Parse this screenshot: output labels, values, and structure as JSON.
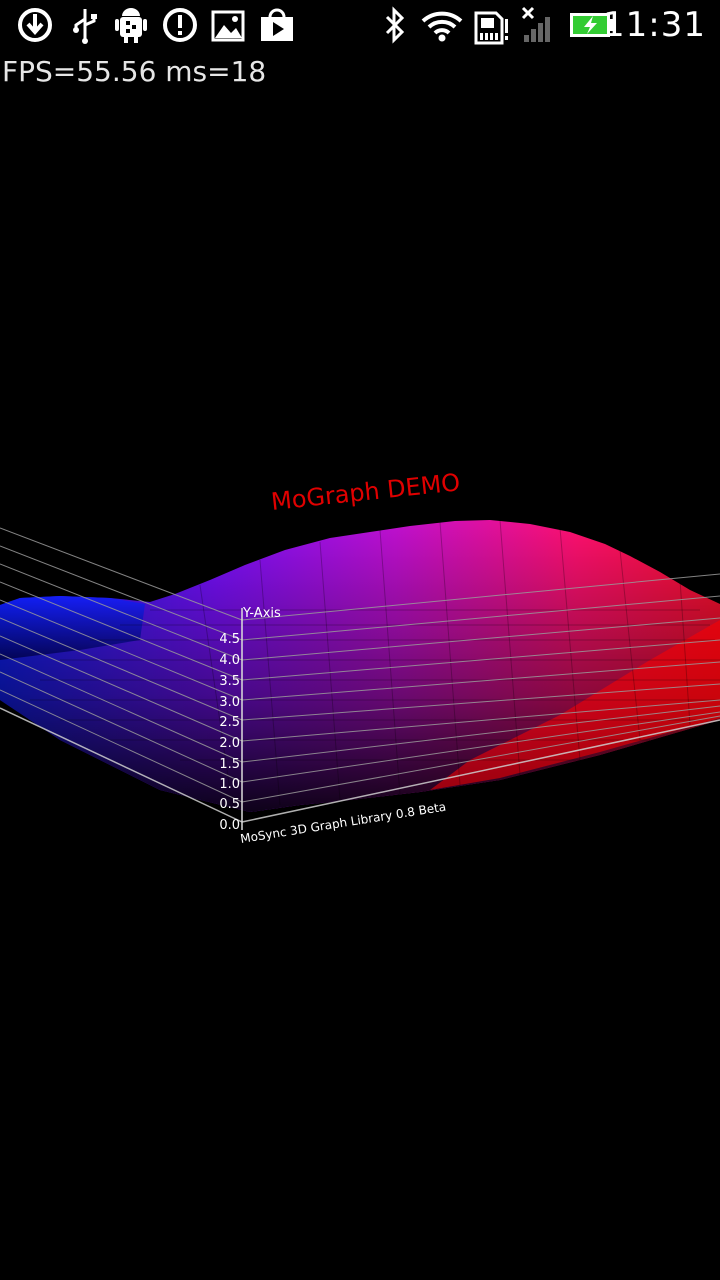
{
  "status_bar": {
    "time": "11:31",
    "icons": [
      "download-icon",
      "usb-icon",
      "android-debug-icon",
      "alert-icon",
      "gallery-icon",
      "play-store-icon",
      "bluetooth-icon",
      "wifi-icon",
      "sd-card-icon",
      "signal-off-icon",
      "battery-charging-icon"
    ],
    "battery_color": "#33cc33"
  },
  "fps_counter": {
    "text": "FPS=55.56 ms=18"
  },
  "graph": {
    "title": "MoGraph DEMO",
    "title_color": "#e00000",
    "y_axis_label": "Y-Axis",
    "y_ticks": [
      "0.0",
      "0.5",
      "1.0",
      "1.5",
      "2.0",
      "2.5",
      "3.0",
      "3.5",
      "4.0",
      "4.5"
    ],
    "footer": "MoSync 3D Graph Library 0.8 Beta",
    "colors": {
      "low": "#0a1aff",
      "mid": "#9a10ff",
      "high": "#ff1060",
      "edge": "#ff0000"
    }
  }
}
